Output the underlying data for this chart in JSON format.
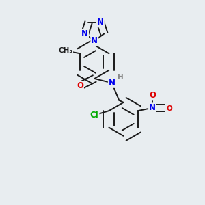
{
  "bg_color": "#e8edf0",
  "bond_color": "#1a1a1a",
  "atom_colors": {
    "N": "#0000ee",
    "O": "#dd0000",
    "Cl": "#00aa00",
    "C": "#1a1a1a",
    "H": "#888888"
  },
  "line_width": 1.4,
  "font_size": 8.5,
  "double_sep": 0.018
}
